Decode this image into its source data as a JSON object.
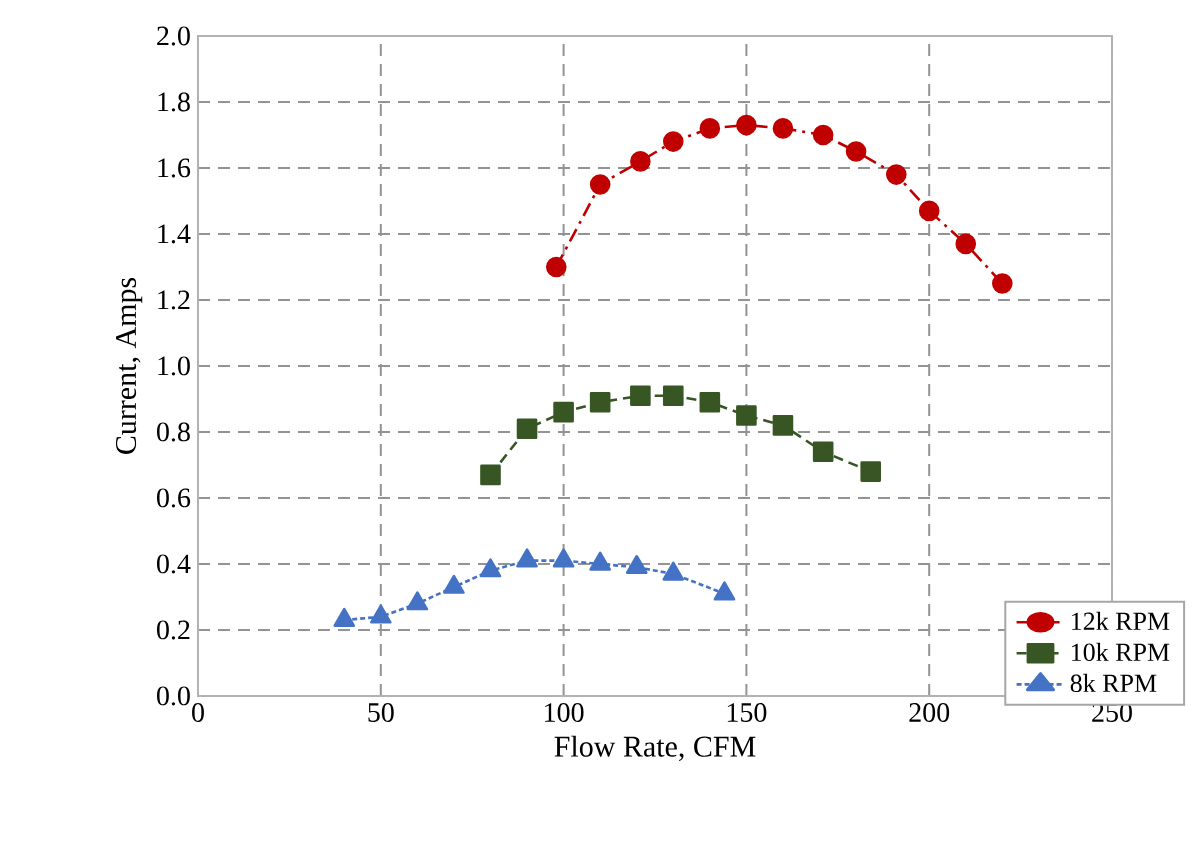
{
  "chart_data": {
    "type": "line",
    "xlabel": "Flow Rate, CFM",
    "ylabel": "Current, Amps",
    "xlim": [
      0,
      250
    ],
    "xticks": [
      0,
      50,
      100,
      150,
      200,
      250
    ],
    "ylim": [
      0,
      2
    ],
    "yticks": [
      {
        "value": 0,
        "label": "0.0"
      },
      {
        "value": 0.2,
        "label": "0.2"
      },
      {
        "value": 0.4,
        "label": "0.4"
      },
      {
        "value": 0.6,
        "label": "0.6"
      },
      {
        "value": 0.8,
        "label": "0.8"
      },
      {
        "value": 1.0,
        "label": "1.0"
      },
      {
        "value": 1.2,
        "label": "1.2"
      },
      {
        "value": 1.4,
        "label": "1.4"
      },
      {
        "value": 1.6,
        "label": "1.6"
      },
      {
        "value": 1.8,
        "label": "1.8"
      },
      {
        "value": 2.0,
        "label": "2.0"
      }
    ],
    "grid": true,
    "legend": "bottom right",
    "series": [
      {
        "name": "12k RPM",
        "color": "#c00000",
        "marker": "circle",
        "line_style": "dashdot",
        "x": [
          98,
          110,
          121,
          130,
          140,
          150,
          160,
          171,
          180,
          191,
          200,
          210,
          220
        ],
        "values": [
          1.3,
          1.55,
          1.62,
          1.68,
          1.72,
          1.73,
          1.72,
          1.7,
          1.65,
          1.58,
          1.47,
          1.37,
          1.25
        ]
      },
      {
        "name": "10k RPM",
        "color": "#375623",
        "marker": "square",
        "line_style": "dashed",
        "x": [
          80,
          90,
          100,
          110,
          121,
          130,
          140,
          150,
          160,
          171,
          184
        ],
        "values": [
          0.67,
          0.81,
          0.86,
          0.89,
          0.91,
          0.91,
          0.89,
          0.85,
          0.82,
          0.74,
          0.68
        ]
      },
      {
        "name": "8k RPM",
        "color": "#4472c4",
        "marker": "triangle",
        "line_style": "dotted",
        "x": [
          40,
          50,
          60,
          70,
          80,
          90,
          100,
          110,
          120,
          130,
          144
        ],
        "values": [
          0.23,
          0.24,
          0.28,
          0.33,
          0.38,
          0.41,
          0.41,
          0.4,
          0.39,
          0.37,
          0.31
        ]
      }
    ]
  }
}
